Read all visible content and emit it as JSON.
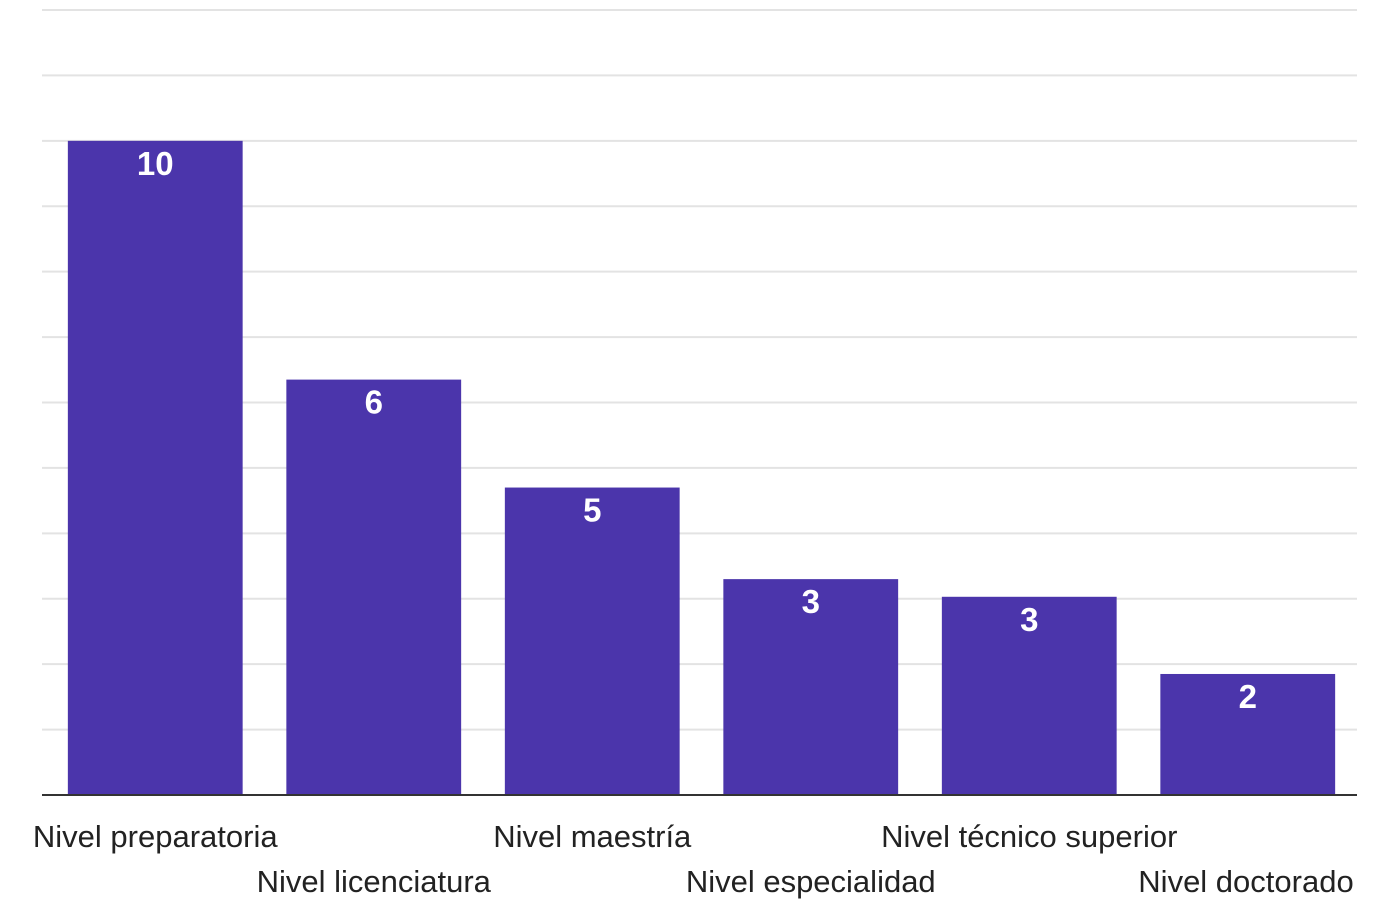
{
  "chart_data": {
    "type": "bar",
    "categories": [
      "Nivel preparatoria",
      "Nivel licenciatura",
      "Nivel maestría",
      "Nivel especialidad",
      "Nivel técnico superior",
      "Nivel doctorado"
    ],
    "values": [
      10,
      6.35,
      4.7,
      3.3,
      3.03,
      1.85
    ],
    "data_labels": [
      "10",
      "6",
      "5",
      "3",
      "3",
      "2"
    ],
    "ylim": [
      0,
      12
    ],
    "grid": true,
    "bar_color": "#4b35ab",
    "title": "",
    "xlabel": "",
    "ylabel": ""
  }
}
